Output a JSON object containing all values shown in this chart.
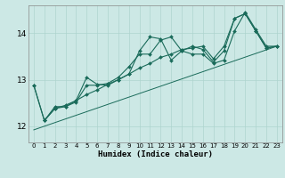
{
  "title": "",
  "xlabel": "Humidex (Indice chaleur)",
  "bg_color": "#cce8e5",
  "line_color": "#1a6b5a",
  "grid_color": "#aed4cf",
  "xlim": [
    -0.5,
    23.5
  ],
  "ylim": [
    11.65,
    14.6
  ],
  "yticks": [
    12,
    13,
    14
  ],
  "xticks": [
    0,
    1,
    2,
    3,
    4,
    5,
    6,
    7,
    8,
    9,
    10,
    11,
    12,
    13,
    14,
    15,
    16,
    17,
    18,
    19,
    20,
    21,
    22,
    23
  ],
  "series1_x": [
    0,
    1,
    2,
    3,
    4,
    5,
    6,
    7,
    8,
    9,
    10,
    11,
    12,
    13,
    14,
    15,
    16,
    17,
    18,
    19,
    20,
    21,
    22,
    23
  ],
  "series1_y": [
    12.88,
    12.12,
    12.42,
    12.42,
    12.52,
    12.88,
    12.88,
    12.92,
    13.05,
    13.28,
    13.55,
    13.55,
    13.85,
    13.92,
    13.62,
    13.72,
    13.65,
    13.38,
    13.62,
    14.32,
    14.42,
    14.05,
    13.68,
    13.72
  ],
  "series2_x": [
    1,
    2,
    3,
    4,
    5,
    6,
    7,
    8,
    9,
    10,
    11,
    12,
    13,
    14,
    15,
    16,
    17,
    18,
    19,
    20,
    21,
    22,
    23
  ],
  "series2_y": [
    12.12,
    12.38,
    12.42,
    12.55,
    13.05,
    12.9,
    12.88,
    13.0,
    13.12,
    13.62,
    13.92,
    13.88,
    13.42,
    13.62,
    13.55,
    13.55,
    13.35,
    13.42,
    14.05,
    14.45,
    14.08,
    13.72,
    13.72
  ],
  "series3_x": [
    0,
    1,
    2,
    3,
    4,
    5,
    6,
    7,
    8,
    9,
    10,
    11,
    12,
    13,
    14,
    15,
    16,
    17,
    18,
    19,
    20,
    21,
    22,
    23
  ],
  "series3_y": [
    12.88,
    12.12,
    12.38,
    12.45,
    12.55,
    12.68,
    12.78,
    12.9,
    13.0,
    13.12,
    13.25,
    13.35,
    13.48,
    13.55,
    13.65,
    13.68,
    13.72,
    13.45,
    13.72,
    14.32,
    14.42,
    14.05,
    13.68,
    13.72
  ],
  "trend_x": [
    0,
    23
  ],
  "trend_y": [
    11.92,
    13.72
  ]
}
